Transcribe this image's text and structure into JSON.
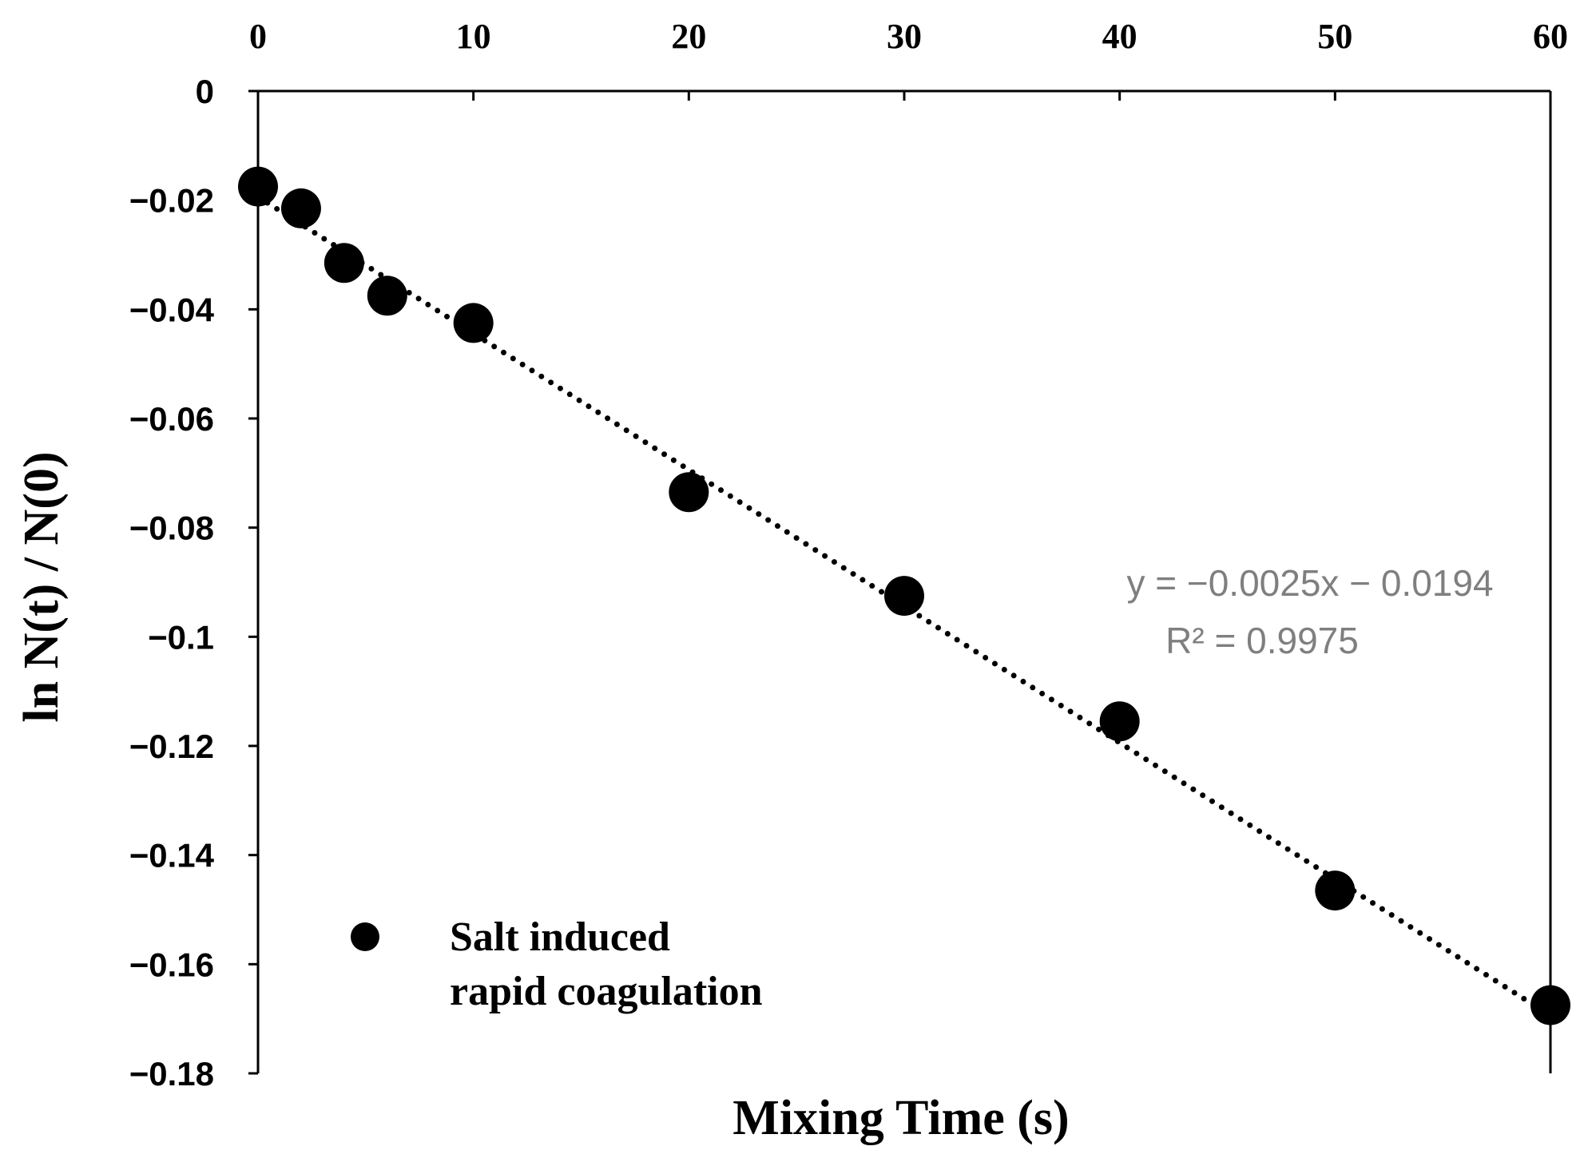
{
  "chart_data": {
    "type": "scatter",
    "title": "",
    "xlabel": "Mixing Time (s)",
    "ylabel": "ln N(t) / N(0)",
    "x_axis_position": "top",
    "xlim": [
      0,
      60
    ],
    "ylim": [
      -0.18,
      0
    ],
    "xticks": [
      0,
      10,
      20,
      30,
      40,
      50,
      60
    ],
    "xtick_labels": [
      "0",
      "10",
      "20",
      "30",
      "40",
      "50",
      "60"
    ],
    "yticks": [
      0,
      -0.02,
      -0.04,
      -0.06,
      -0.08,
      -0.1,
      -0.12,
      -0.14,
      -0.16,
      -0.18
    ],
    "ytick_labels": [
      "0",
      "−0.02",
      "−0.04",
      "−0.06",
      "−0.08",
      "−0.1",
      "−0.12",
      "−0.14",
      "−0.16",
      "−0.18"
    ],
    "grid": false,
    "series": [
      {
        "name": "Salt induced rapid coagulation",
        "marker": "circle",
        "color": "#000000",
        "x": [
          0,
          2,
          4,
          6,
          10,
          20,
          30,
          40,
          50,
          60
        ],
        "y": [
          -0.0175,
          -0.0215,
          -0.0315,
          -0.0375,
          -0.0425,
          -0.0735,
          -0.0925,
          -0.1155,
          -0.1465,
          -0.1675
        ]
      }
    ],
    "trendline": {
      "type": "linear",
      "style": "dotted",
      "color": "#000000",
      "slope": -0.0025,
      "intercept": -0.0194,
      "x_range": [
        0,
        60
      ]
    },
    "legend": {
      "position": "bottom-left",
      "lines": [
        "Salt induced",
        "rapid coagulation"
      ]
    },
    "annotations": {
      "equation": "y = −0.0025x − 0.0194",
      "r_squared": "R² = 0.9975",
      "color": "#7f7f7f"
    }
  }
}
